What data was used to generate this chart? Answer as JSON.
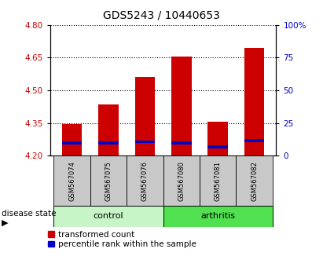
{
  "title": "GDS5243 / 10440653",
  "samples": [
    "GSM567074",
    "GSM567075",
    "GSM567076",
    "GSM567080",
    "GSM567081",
    "GSM567082"
  ],
  "bar_bottom": 4.2,
  "transformed_counts": [
    4.345,
    4.435,
    4.56,
    4.655,
    4.355,
    4.695
  ],
  "percentile_positions": [
    4.253,
    4.253,
    4.258,
    4.253,
    4.233,
    4.263
  ],
  "percentile_heights": [
    0.013,
    0.013,
    0.013,
    0.013,
    0.013,
    0.013
  ],
  "ylim_left": [
    4.2,
    4.8
  ],
  "ylim_right": [
    0,
    100
  ],
  "yticks_left": [
    4.2,
    4.35,
    4.5,
    4.65,
    4.8
  ],
  "yticks_right": [
    0,
    25,
    50,
    75,
    100
  ],
  "ytick_labels_right": [
    "0",
    "25",
    "50",
    "75",
    "100%"
  ],
  "bar_color": "#cc0000",
  "percentile_color": "#0000cc",
  "bar_width": 0.55,
  "grid_color": "#000000",
  "tick_label_color_left": "#cc0000",
  "tick_label_color_right": "#0000cc",
  "legend_transformed": "transformed count",
  "legend_percentile": "percentile rank within the sample",
  "disease_state_label": "disease state",
  "control_color": "#c8f5c8",
  "arthritis_color": "#50e050",
  "sample_box_color": "#c8c8c8",
  "title_fontsize": 10
}
